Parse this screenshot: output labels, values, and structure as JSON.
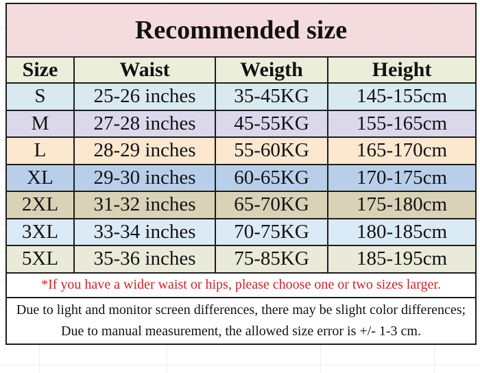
{
  "page": {
    "background": "#ffffff",
    "gridline_color": "#ededed"
  },
  "table": {
    "title": "Recommended size",
    "title_bg": "#f4dbdd",
    "header_bg": "#ebeeda",
    "border_color": "#1c1c1c",
    "headers": [
      "Size",
      "Waist",
      "Weigth",
      "Height"
    ],
    "rows": [
      {
        "size": "S",
        "waist": "25-26 inches",
        "weight": "35-45KG",
        "height": "145-155cm",
        "bg": "#d8e9f0"
      },
      {
        "size": "M",
        "waist": "27-28 inches",
        "weight": "45-55KG",
        "height": "155-165cm",
        "bg": "#dcd8eb"
      },
      {
        "size": "L",
        "waist": "28-29 inches",
        "weight": "55-60KG",
        "height": "165-170cm",
        "bg": "#fce7cf"
      },
      {
        "size": "XL",
        "waist": "29-30 inches",
        "weight": "60-65KG",
        "height": "170-175cm",
        "bg": "#b9cfe9"
      },
      {
        "size": "2XL",
        "waist": "31-32 inches",
        "weight": "65-70KG",
        "height": "175-180cm",
        "bg": "#d9d2b6"
      },
      {
        "size": "3XL",
        "waist": "33-34 inches",
        "weight": "70-75KG",
        "height": "180-185cm",
        "bg": "#daeaf6"
      },
      {
        "size": "5XL",
        "waist": "35-36 inches",
        "weight": "75-85KG",
        "height": "185-195cm",
        "bg": "#e9ead8"
      }
    ]
  },
  "notes": {
    "size_note": "*If you have a wider waist or hips, please choose one or two sizes larger.",
    "size_note_color": "#d32222",
    "disclaimer": "Due to light and monitor screen differences, there may be slight color differences; Due to manual measurement, the allowed size error is +/- 1-3 cm."
  },
  "chart_data": {
    "type": "table",
    "title": "Recommended size",
    "columns": [
      "Size",
      "Waist",
      "Weigth",
      "Height"
    ],
    "rows": [
      [
        "S",
        "25-26 inches",
        "35-45KG",
        "145-155cm"
      ],
      [
        "M",
        "27-28 inches",
        "45-55KG",
        "155-165cm"
      ],
      [
        "L",
        "28-29 inches",
        "55-60KG",
        "165-170cm"
      ],
      [
        "XL",
        "29-30 inches",
        "60-65KG",
        "170-175cm"
      ],
      [
        "2XL",
        "31-32 inches",
        "65-70KG",
        "175-180cm"
      ],
      [
        "3XL",
        "33-34 inches",
        "70-75KG",
        "180-185cm"
      ],
      [
        "5XL",
        "35-36 inches",
        "75-85KG",
        "185-195cm"
      ]
    ],
    "footnotes": [
      "*If you have a wider waist or hips, please choose one or two sizes larger.",
      "Due to light and monitor screen differences, there may be slight color differences; Due to manual measurement, the allowed size error is +/- 1-3 cm."
    ]
  }
}
